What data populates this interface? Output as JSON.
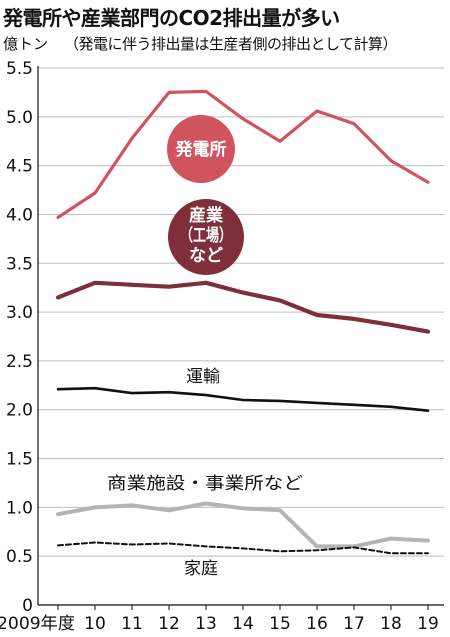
{
  "title": "発電所や産業部門のCO2排出量が多い",
  "unit": "億トン",
  "subtitle": "（発電に伴う排出量は生産者側の排出として計算）",
  "chart_data": {
    "type": "line",
    "x": [
      "2009年度",
      "10",
      "11",
      "12",
      "13",
      "14",
      "15",
      "16",
      "17",
      "18",
      "19"
    ],
    "y_ticks": [
      "0",
      "0.5",
      "1.0",
      "1.5",
      "2.0",
      "2.5",
      "3.0",
      "3.5",
      "4.0",
      "4.5",
      "5.0",
      "5.5"
    ],
    "ylim": [
      0,
      5.5
    ],
    "grid": "horizontal",
    "series": [
      {
        "name": "発電所",
        "color": "#d0545f",
        "style": "solid",
        "label_style": "bubble",
        "values": [
          3.97,
          4.22,
          4.78,
          5.25,
          5.26,
          4.98,
          4.75,
          5.06,
          4.93,
          4.55,
          4.33
        ]
      },
      {
        "name": "産業（工場など）",
        "label_lines": [
          "産業",
          "（工場）",
          "など"
        ],
        "color": "#7e2f3a",
        "style": "solid",
        "label_style": "bubble",
        "values": [
          3.15,
          3.3,
          3.28,
          3.26,
          3.3,
          3.2,
          3.12,
          2.97,
          2.93,
          2.87,
          2.8
        ]
      },
      {
        "name": "運輸",
        "color": "#111111",
        "style": "solid",
        "label_style": "text",
        "values": [
          2.21,
          2.22,
          2.17,
          2.18,
          2.15,
          2.1,
          2.09,
          2.07,
          2.05,
          2.03,
          1.99
        ]
      },
      {
        "name": "商業施設・事業所など",
        "color": "#b4b4b4",
        "style": "solid",
        "label_style": "text",
        "values": [
          0.93,
          1.0,
          1.02,
          0.97,
          1.04,
          0.99,
          0.97,
          0.6,
          0.6,
          0.68,
          0.66
        ]
      },
      {
        "name": "家庭",
        "color": "#111111",
        "style": "dashed",
        "label_style": "text",
        "values": [
          0.61,
          0.64,
          0.62,
          0.63,
          0.6,
          0.58,
          0.55,
          0.56,
          0.59,
          0.53,
          0.53
        ]
      }
    ]
  }
}
